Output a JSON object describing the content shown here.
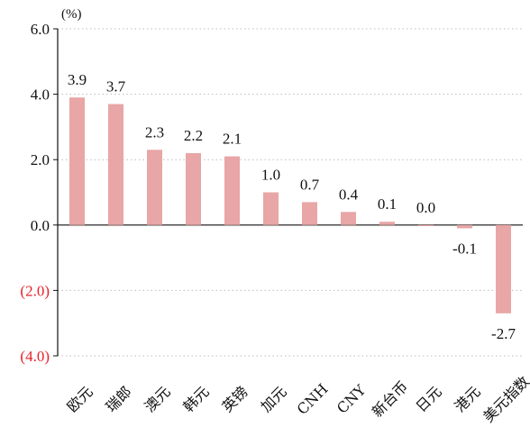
{
  "chart_data": {
    "type": "bar",
    "unit": "(%)",
    "categories": [
      "欧元",
      "瑞郎",
      "澳元",
      "韩元",
      "英镑",
      "加元",
      "CNH",
      "CNY",
      "新台币",
      "日元",
      "港元",
      "美元指数"
    ],
    "values": [
      3.9,
      3.7,
      2.3,
      2.2,
      2.1,
      1.0,
      0.7,
      0.4,
      0.1,
      0.0,
      -0.1,
      -2.7
    ],
    "value_labels": [
      "3.9",
      "3.7",
      "2.3",
      "2.2",
      "2.1",
      "1.0",
      "0.7",
      "0.4",
      "0.1",
      "0.0",
      "-0.1",
      "-2.7"
    ],
    "ylim": [
      -4.0,
      6.0
    ],
    "yticks": [
      6.0,
      4.0,
      2.0,
      0.0,
      -2.0,
      -4.0
    ],
    "ytick_labels": [
      "6.0",
      "4.0",
      "2.0",
      "0.0",
      "(2.0)",
      "(4.0)"
    ],
    "grid": true,
    "bar_color": "#e8a6a6",
    "negative_tick_color": "#e8202a",
    "positive_tick_color": "#111111",
    "title": "",
    "xlabel": "",
    "ylabel": ""
  }
}
